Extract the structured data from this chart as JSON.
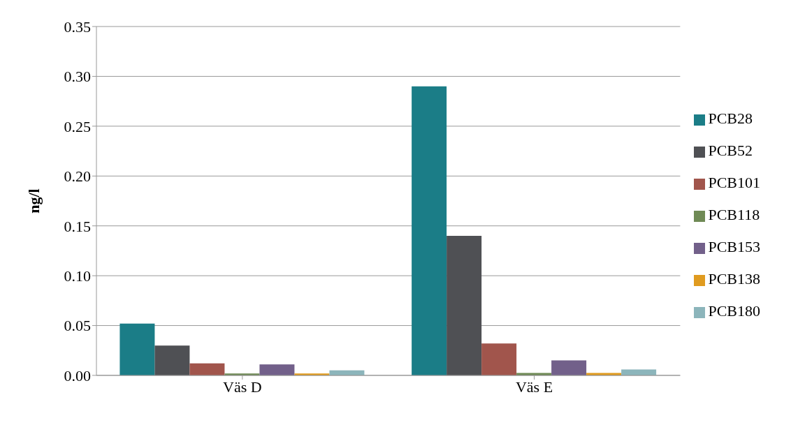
{
  "chart_data": {
    "type": "bar",
    "ylabel": "ng/l",
    "categories": [
      "Väs D",
      "Väs E"
    ],
    "series": [
      {
        "name": "PCB28",
        "color": "#1b7d87",
        "values": [
          0.052,
          0.29
        ]
      },
      {
        "name": "PCB52",
        "color": "#4f5054",
        "values": [
          0.03,
          0.14
        ]
      },
      {
        "name": "PCB101",
        "color": "#a1554c",
        "values": [
          0.012,
          0.032
        ]
      },
      {
        "name": "PCB118",
        "color": "#6f8a55",
        "values": [
          0.002,
          0.0025
        ]
      },
      {
        "name": "PCB153",
        "color": "#72608a",
        "values": [
          0.011,
          0.015
        ]
      },
      {
        "name": "PCB138",
        "color": "#e09b1f",
        "values": [
          0.002,
          0.0025
        ]
      },
      {
        "name": "PCB180",
        "color": "#8cb5bb",
        "values": [
          0.005,
          0.006
        ]
      }
    ],
    "ylim": [
      0,
      0.35
    ],
    "yticks": [
      {
        "value": 0,
        "label": "0.00"
      },
      {
        "value": 0.05,
        "label": "0.05"
      },
      {
        "value": 0.1,
        "label": "0.10"
      },
      {
        "value": 0.15,
        "label": "0.15"
      },
      {
        "value": 0.2,
        "label": "0.20"
      },
      {
        "value": 0.25,
        "label": "0.25"
      },
      {
        "value": 0.3,
        "label": "0.30"
      },
      {
        "value": 0.35,
        "label": "0.35"
      }
    ],
    "grid": "y",
    "legend": "right"
  }
}
